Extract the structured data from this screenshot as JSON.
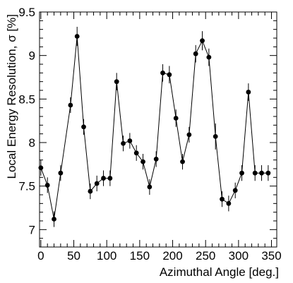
{
  "chart_data": {
    "type": "scatter",
    "title": "",
    "xlabel": "Azimuthal Angle [deg.]",
    "ylabel": "Local Energy Resolution, σ [%]",
    "xlim": [
      -2,
      358
    ],
    "ylim": [
      6.8,
      9.5
    ],
    "xticks": [
      0,
      50,
      100,
      150,
      200,
      250,
      300,
      350
    ],
    "xtick_labels": [
      "0",
      "50",
      "100",
      "150",
      "200",
      "250",
      "300",
      "350"
    ],
    "yticks": [
      7,
      7.5,
      8,
      8.5,
      9,
      9.5
    ],
    "ytick_labels": [
      "7",
      "7.5",
      "8",
      "8.5",
      "9",
      "9.5"
    ],
    "grid": false,
    "connect_points": true,
    "series": [
      {
        "x": [
          0,
          10,
          20,
          30,
          45,
          55,
          65,
          75,
          85,
          95,
          105,
          115,
          125,
          135,
          145,
          155,
          165,
          175,
          185,
          195,
          205,
          215,
          225,
          235,
          245,
          255,
          265,
          275,
          285,
          295,
          305,
          315,
          325,
          335,
          345
        ],
        "y": [
          7.71,
          7.51,
          7.12,
          7.65,
          8.43,
          9.22,
          8.18,
          7.44,
          7.53,
          7.59,
          7.59,
          8.7,
          7.99,
          8.02,
          7.88,
          7.78,
          7.49,
          7.81,
          8.8,
          8.78,
          8.28,
          7.78,
          8.09,
          9.02,
          9.17,
          8.98,
          8.07,
          7.35,
          7.3,
          7.45,
          7.65,
          8.58,
          7.65,
          7.65,
          7.65
        ],
        "yerr": [
          0.09,
          0.09,
          0.09,
          0.09,
          0.09,
          0.11,
          0.09,
          0.09,
          0.09,
          0.09,
          0.09,
          0.1,
          0.09,
          0.09,
          0.09,
          0.09,
          0.09,
          0.09,
          0.1,
          0.1,
          0.1,
          0.09,
          0.09,
          0.1,
          0.11,
          0.1,
          0.15,
          0.09,
          0.09,
          0.09,
          0.09,
          0.1,
          0.09,
          0.09,
          0.09
        ],
        "xerr": 2.5
      }
    ]
  }
}
